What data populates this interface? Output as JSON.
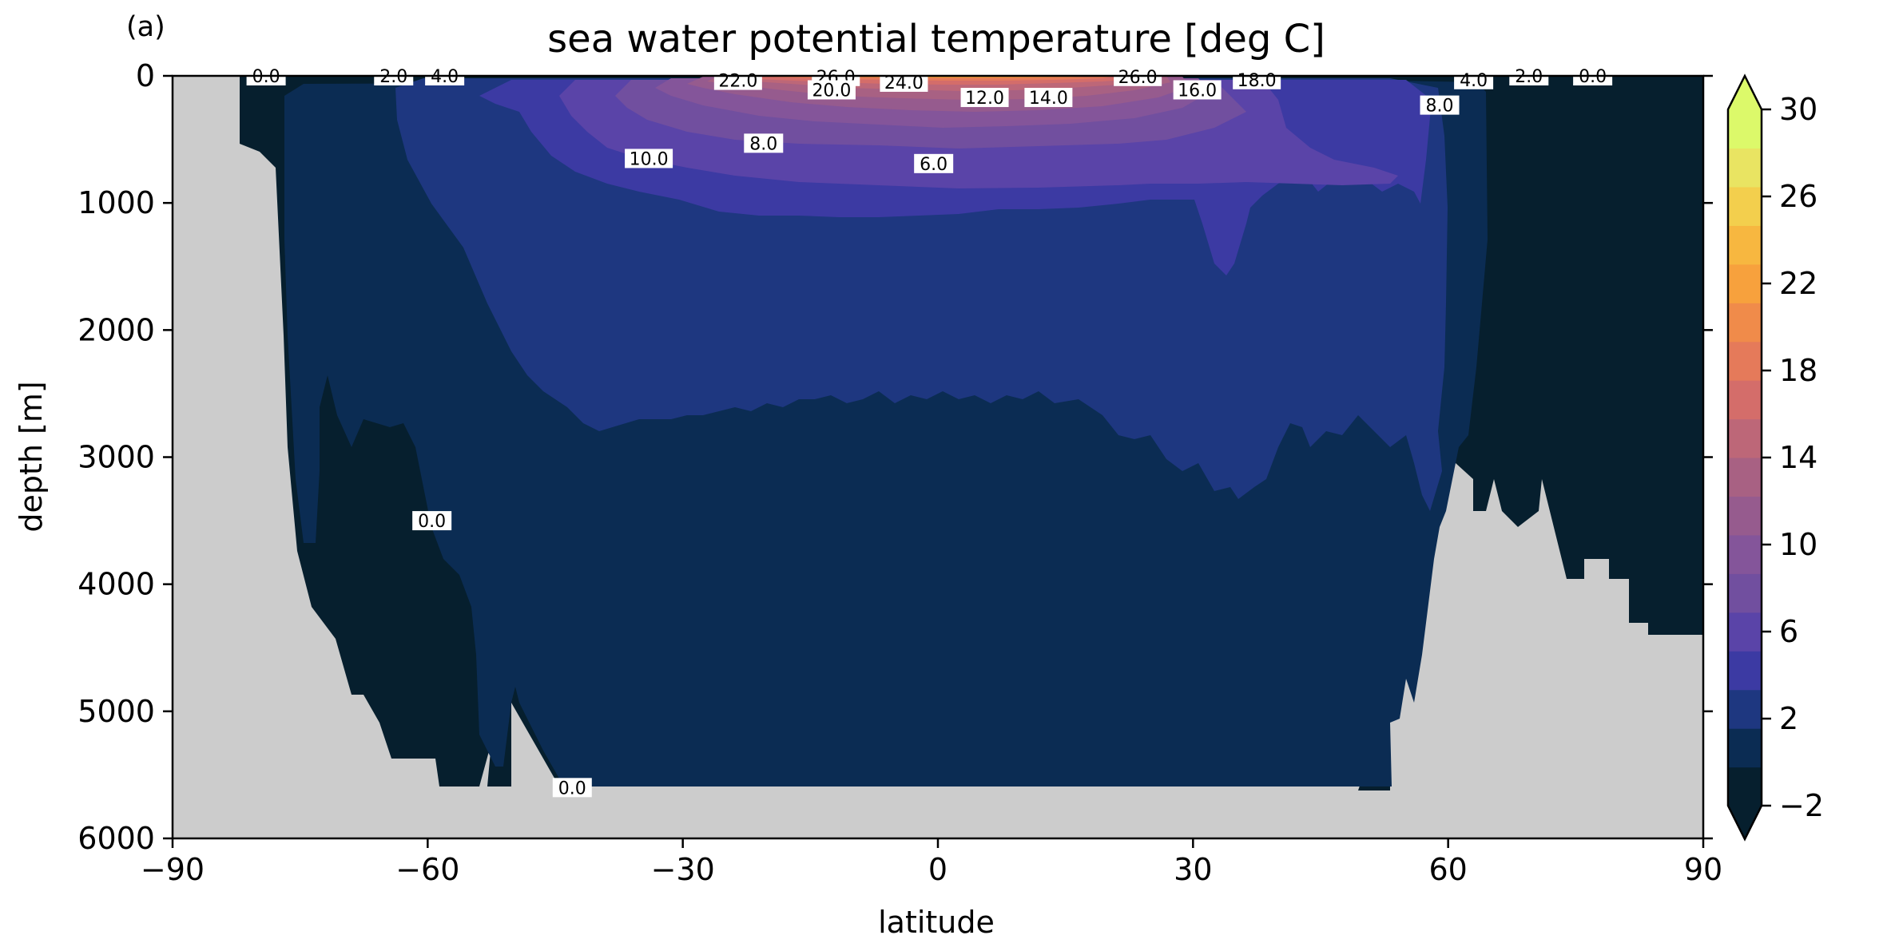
{
  "panel_label": "(a)",
  "colors": {
    "land": "#cccccc",
    "levels": [
      "#061f2e",
      "#0b2c53",
      "#1e3780",
      "#3c3aa3",
      "#5a44a8",
      "#714f9f",
      "#84559a",
      "#965b8e",
      "#a86183",
      "#bd6778",
      "#d46d6a",
      "#e57a5a",
      "#f08b4a",
      "#f7a13d",
      "#f7b740",
      "#f3cf4d",
      "#e9e462",
      "#dcf96a"
    ]
  },
  "chart_data": {
    "type": "heatmap",
    "title": "sea water potential temperature [deg C]",
    "xlabel": "latitude",
    "ylabel": "depth [m]",
    "xlim": [
      -90,
      90
    ],
    "ylim": [
      6000,
      0
    ],
    "xticks": [
      "−90",
      "−60",
      "−30",
      "0",
      "30",
      "60",
      "90"
    ],
    "yticks": [
      "0",
      "1000",
      "2000",
      "3000",
      "4000",
      "5000",
      "6000"
    ],
    "colorbar": {
      "range": [
        -2,
        30
      ],
      "extend": "both",
      "ticks": [
        "−2",
        "2",
        "6",
        "10",
        "14",
        "18",
        "22",
        "26",
        "30"
      ]
    },
    "contour_labels": [
      {
        "text": "0.0",
        "lat": -79,
        "depth": 0
      },
      {
        "text": "2.0",
        "lat": -64,
        "depth": 0
      },
      {
        "text": "4.0",
        "lat": -58,
        "depth": 0
      },
      {
        "text": "22.0",
        "lat": -23.5,
        "depth": 35
      },
      {
        "text": "26.0",
        "lat": -12,
        "depth": 5
      },
      {
        "text": "20.0",
        "lat": -12.5,
        "depth": 110
      },
      {
        "text": "24.0",
        "lat": -4,
        "depth": 50
      },
      {
        "text": "12.0",
        "lat": 5.5,
        "depth": 170
      },
      {
        "text": "14.0",
        "lat": 13,
        "depth": 170
      },
      {
        "text": "26.0",
        "lat": 23.5,
        "depth": 5
      },
      {
        "text": "16.0",
        "lat": 30.5,
        "depth": 110
      },
      {
        "text": "18.0",
        "lat": 37.5,
        "depth": 30
      },
      {
        "text": "8.0",
        "lat": 59,
        "depth": 230
      },
      {
        "text": "4.0",
        "lat": 63,
        "depth": 30
      },
      {
        "text": "2.0",
        "lat": 69.5,
        "depth": 0
      },
      {
        "text": "0.0",
        "lat": 77,
        "depth": 0
      },
      {
        "text": "10.0",
        "lat": -34,
        "depth": 650
      },
      {
        "text": "8.0",
        "lat": -20.5,
        "depth": 530
      },
      {
        "text": "6.0",
        "lat": -0.5,
        "depth": 690
      },
      {
        "text": "0.0",
        "lat": -59.5,
        "depth": 3500
      },
      {
        "text": "0.0",
        "lat": -43,
        "depth": 5600
      }
    ]
  }
}
